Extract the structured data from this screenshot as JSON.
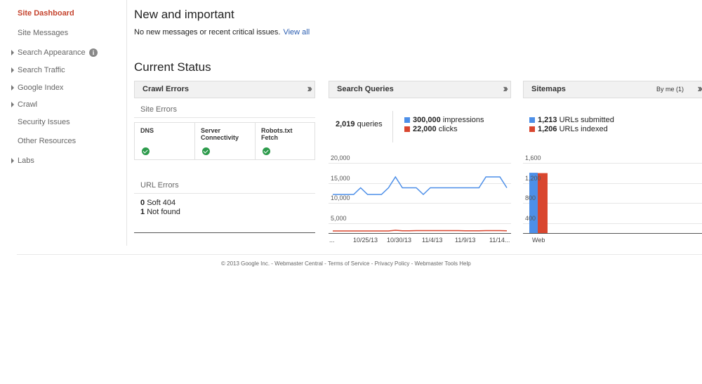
{
  "sidebar": {
    "items": [
      {
        "label": "Site Dashboard",
        "active": true,
        "expandable": false
      },
      {
        "label": "Site Messages",
        "expandable": false
      },
      {
        "label": "Search Appearance",
        "expandable": true,
        "info": "i"
      },
      {
        "label": "Search Traffic",
        "expandable": true
      },
      {
        "label": "Google Index",
        "expandable": true
      },
      {
        "label": "Crawl",
        "expandable": true
      },
      {
        "label": "Security Issues",
        "expandable": false
      },
      {
        "label": "Other Resources",
        "expandable": false
      },
      {
        "label": "Labs",
        "expandable": true
      }
    ]
  },
  "new_important": {
    "title": "New and important",
    "message": "No new messages or recent critical issues.",
    "link": "View all"
  },
  "current_status": {
    "title": "Current Status"
  },
  "crawl_errors": {
    "title": "Crawl Errors",
    "site_errors_label": "Site Errors",
    "columns": [
      {
        "line1": "DNS",
        "line2": ""
      },
      {
        "line1": "Server",
        "line2": "Connectivity"
      },
      {
        "line1": "Robots.txt",
        "line2": "Fetch"
      }
    ],
    "url_errors_label": "URL Errors",
    "url_errors": [
      {
        "count": "0",
        "label": "Soft 404"
      },
      {
        "count": "1",
        "label": "Not found"
      }
    ]
  },
  "search_queries": {
    "title": "Search Queries",
    "queries_count": "2,019",
    "queries_label": "queries",
    "impressions_count": "300,000",
    "impressions_label": "impressions",
    "clicks_count": "22,000",
    "clicks_label": "clicks",
    "y_ticks": [
      "20,000",
      "15,000",
      "10,000",
      "5,000"
    ],
    "x_ticks": [
      "...",
      "10/25/13",
      "10/30/13",
      "11/4/13",
      "11/9/13",
      "11/14..."
    ]
  },
  "sitemaps": {
    "title": "Sitemaps",
    "filter": "By me (1)",
    "submitted_count": "1,213",
    "submitted_label": "URLs submitted",
    "indexed_count": "1,206",
    "indexed_label": "URLs indexed",
    "y_ticks": [
      "1,600",
      "1,200",
      "800",
      "400"
    ],
    "x_ticks": [
      "Web"
    ]
  },
  "colors": {
    "blue": "#4d8fe8",
    "red": "#d9462f",
    "accent": "#c5432d",
    "link": "#2a5db0"
  },
  "chart_data": [
    {
      "type": "line",
      "ylim": [
        0,
        20000
      ],
      "x": [
        "10/21/13",
        "10/22/13",
        "10/23/13",
        "10/24/13",
        "10/25/13",
        "10/26/13",
        "10/27/13",
        "10/28/13",
        "10/29/13",
        "10/30/13",
        "10/31/13",
        "11/1/13",
        "11/2/13",
        "11/3/13",
        "11/4/13",
        "11/5/13",
        "11/6/13",
        "11/7/13",
        "11/8/13",
        "11/9/13",
        "11/10/13",
        "11/11/13",
        "11/12/13",
        "11/13/13",
        "11/14/13",
        "11/15/13"
      ],
      "series": [
        {
          "name": "impressions",
          "values": [
            11000,
            11000,
            11000,
            11000,
            12900,
            11000,
            11000,
            11000,
            12900,
            16000,
            12900,
            12900,
            12900,
            11000,
            12900,
            12900,
            12900,
            12900,
            12900,
            12900,
            12900,
            12900,
            16000,
            16000,
            16000,
            12900
          ]
        },
        {
          "name": "clicks",
          "values": [
            600,
            600,
            600,
            600,
            600,
            600,
            600,
            600,
            600,
            800,
            650,
            650,
            700,
            700,
            700,
            700,
            700,
            700,
            700,
            650,
            650,
            650,
            700,
            700,
            700,
            650
          ]
        }
      ]
    },
    {
      "type": "bar",
      "categories": [
        "Web"
      ],
      "ylim": [
        0,
        1600
      ],
      "series": [
        {
          "name": "URLs submitted",
          "values": [
            1213
          ]
        },
        {
          "name": "URLs indexed",
          "values": [
            1206
          ]
        }
      ]
    }
  ]
}
